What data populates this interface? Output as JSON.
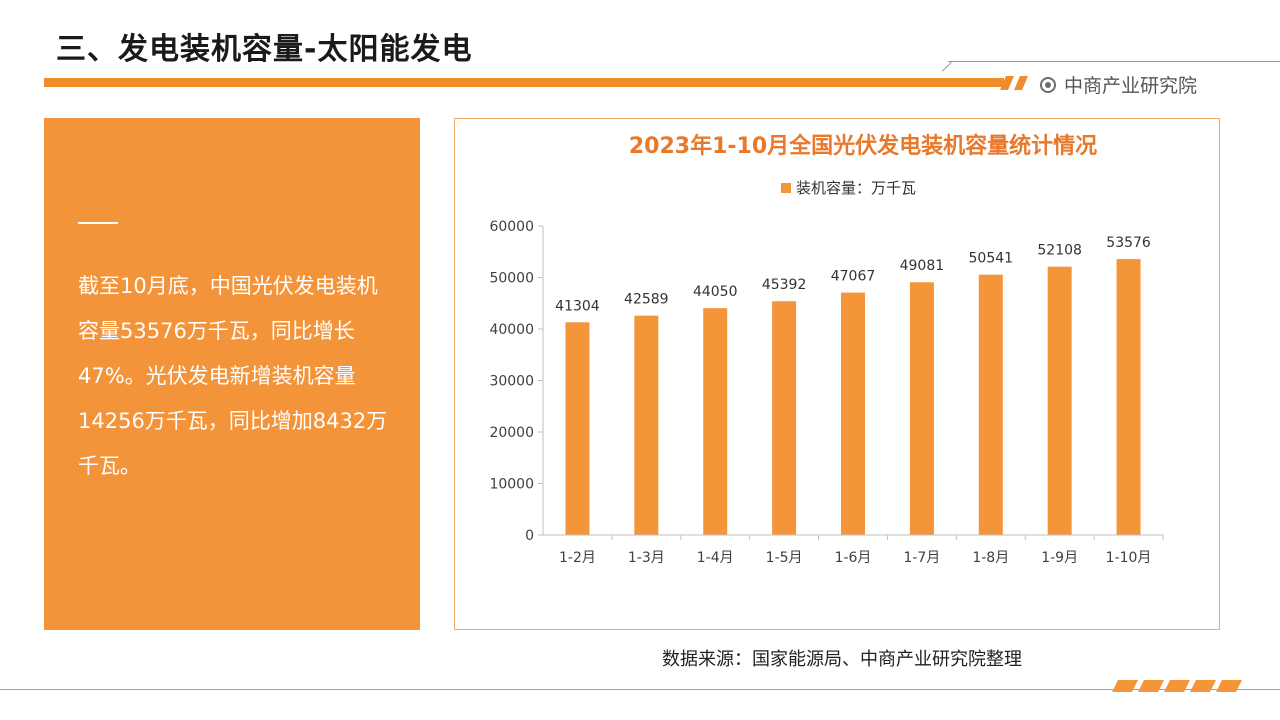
{
  "header": {
    "title": "三、发电装机容量-太阳能发电",
    "brand": "中商产业研究院"
  },
  "summary": {
    "text": "截至10月底，中国光伏发电装机容量53576万千瓦，同比增长47%。光伏发电新增装机容量14256万千瓦，同比增加8432万千瓦。"
  },
  "footer": {
    "source": "数据来源：国家能源局、中商产业研究院整理"
  },
  "colors": {
    "accent": "#f08c2a",
    "bar": "#f5953a",
    "panel": "#f4943a",
    "chart_title": "#e8782a"
  },
  "chart_data": {
    "type": "bar",
    "title": "2023年1-10月全国光伏发电装机容量统计情况",
    "legend": "top-center",
    "categories": [
      "1-2月",
      "1-3月",
      "1-4月",
      "1-5月",
      "1-6月",
      "1-7月",
      "1-8月",
      "1-9月",
      "1-10月"
    ],
    "series": [
      {
        "name": "装机容量：万千瓦",
        "values": [
          41304,
          42589,
          44050,
          45392,
          47067,
          49081,
          50541,
          52108,
          53576
        ]
      }
    ],
    "ylim": [
      0,
      60000
    ],
    "yticks": [
      0,
      10000,
      20000,
      30000,
      40000,
      50000,
      60000
    ],
    "grid": false
  }
}
